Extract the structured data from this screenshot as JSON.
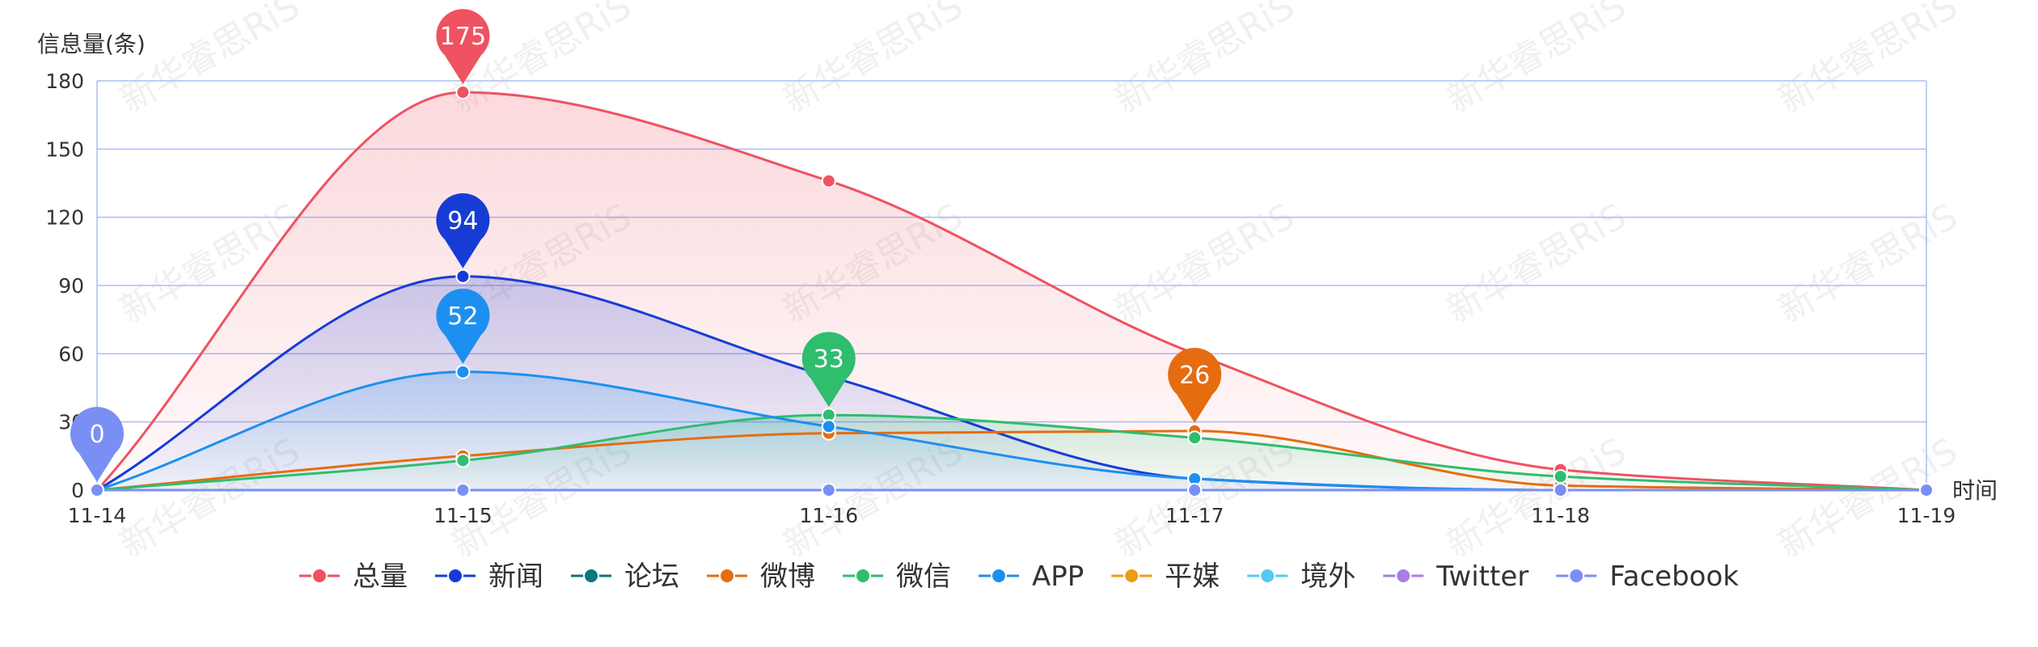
{
  "watermark": "新华睿思RiS",
  "chart_data": {
    "type": "line",
    "smooth": true,
    "area_fill": true,
    "ylabel": "信息量(条)",
    "xlabel": "时间",
    "categories": [
      "11-14",
      "11-15",
      "11-16",
      "11-17",
      "11-18",
      "11-19"
    ],
    "ylim": [
      0,
      180
    ],
    "yticks": [
      0,
      30,
      60,
      90,
      120,
      150,
      180
    ],
    "grid": true,
    "legend_position": "bottom-center",
    "series": [
      {
        "name": "总量",
        "color": "#ef5261",
        "values": [
          0,
          175,
          136,
          60,
          9,
          0
        ],
        "area": true
      },
      {
        "name": "新闻",
        "color": "#173cd6",
        "values": [
          0,
          94,
          50,
          5,
          0,
          0
        ],
        "area": true
      },
      {
        "name": "论坛",
        "color": "#08777e",
        "values": [
          0,
          0,
          0,
          0,
          0,
          0
        ],
        "area": false
      },
      {
        "name": "微博",
        "color": "#e66c10",
        "values": [
          0,
          15,
          25,
          26,
          2,
          0
        ],
        "area": false
      },
      {
        "name": "微信",
        "color": "#2fbd6e",
        "values": [
          0,
          13,
          33,
          23,
          6,
          0
        ],
        "area": true
      },
      {
        "name": "APP",
        "color": "#1d8ff0",
        "values": [
          0,
          52,
          28,
          5,
          0,
          0
        ],
        "area": true
      },
      {
        "name": "平媒",
        "color": "#ee9b14",
        "values": [
          0,
          0,
          0,
          0,
          0,
          0
        ],
        "area": false
      },
      {
        "name": "境外",
        "color": "#56c8f4",
        "values": [
          0,
          0,
          0,
          0,
          0,
          0
        ],
        "area": false
      },
      {
        "name": "Twitter",
        "color": "#a87ee6",
        "values": [
          0,
          0,
          0,
          0,
          0,
          0
        ],
        "area": false
      },
      {
        "name": "Facebook",
        "color": "#7a8ff4",
        "values": [
          0,
          0,
          0,
          0,
          0,
          0
        ],
        "area": false
      }
    ],
    "annotations": [
      {
        "series": "总量",
        "category": "11-15",
        "label": "175"
      },
      {
        "series": "新闻",
        "category": "11-15",
        "label": "94"
      },
      {
        "series": "APP",
        "category": "11-15",
        "label": "52"
      },
      {
        "series": "微信",
        "category": "11-16",
        "label": "33"
      },
      {
        "series": "微博",
        "category": "11-17",
        "label": "26"
      },
      {
        "series": "Facebook",
        "category": "11-14",
        "label": "0"
      }
    ]
  }
}
